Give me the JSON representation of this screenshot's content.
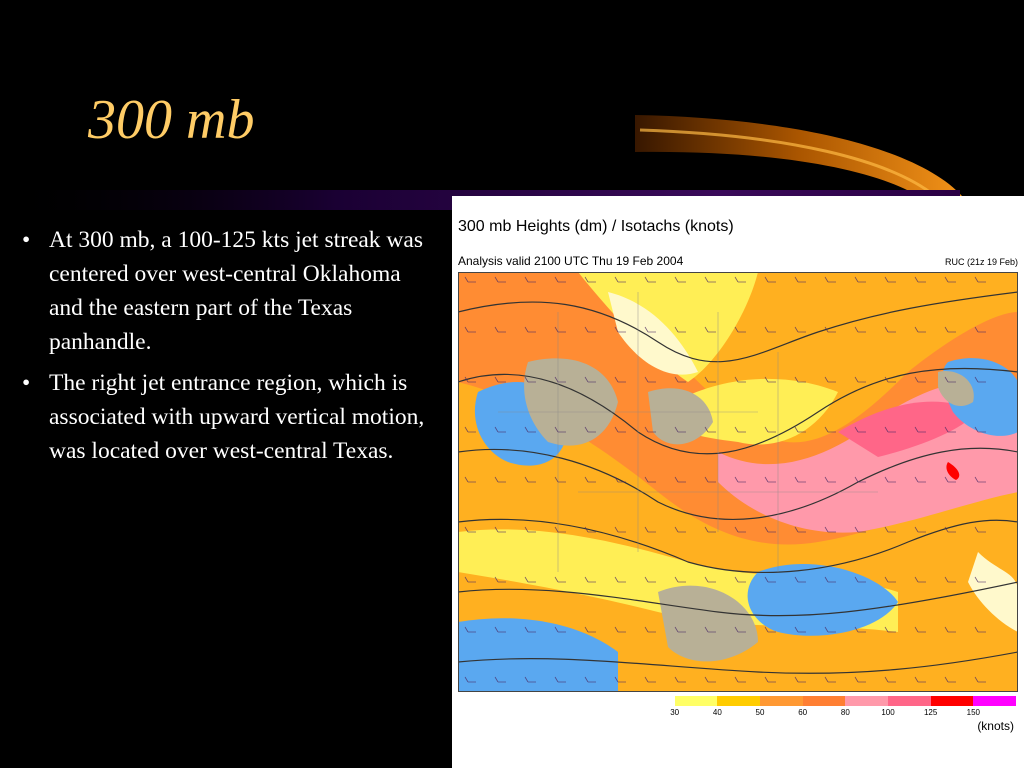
{
  "slide": {
    "title": "300 mb",
    "bullets": [
      "At 300 mb, a 100-125 kts jet streak was centered over west-central Oklahoma and the eastern part of the Texas panhandle.",
      "The right jet entrance region, which is associated with upward vertical motion, was located over west-central Texas."
    ],
    "bullet_glyph": "•"
  },
  "map": {
    "title": "300 mb Heights (dm) / Isotachs (knots)",
    "valid": "Analysis valid 2100 UTC Thu 19 Feb 2004",
    "model": "RUC (21z 19 Feb)",
    "legend": {
      "labels": [
        "30",
        "40",
        "50",
        "60",
        "80",
        "100",
        "125",
        "150"
      ],
      "colors": [
        "#ffffff",
        "#ffff66",
        "#ffcc00",
        "#ff9933",
        "#ff7f33",
        "#ff99aa",
        "#ff6688",
        "#ff0000",
        "#ff00ff"
      ],
      "units": "(knots)"
    }
  },
  "colors": {
    "title": "#ffcc66",
    "background": "#000000",
    "text": "#ffffff",
    "accent_purple": "#2a0055",
    "accent_orange": "#ff8c00"
  }
}
